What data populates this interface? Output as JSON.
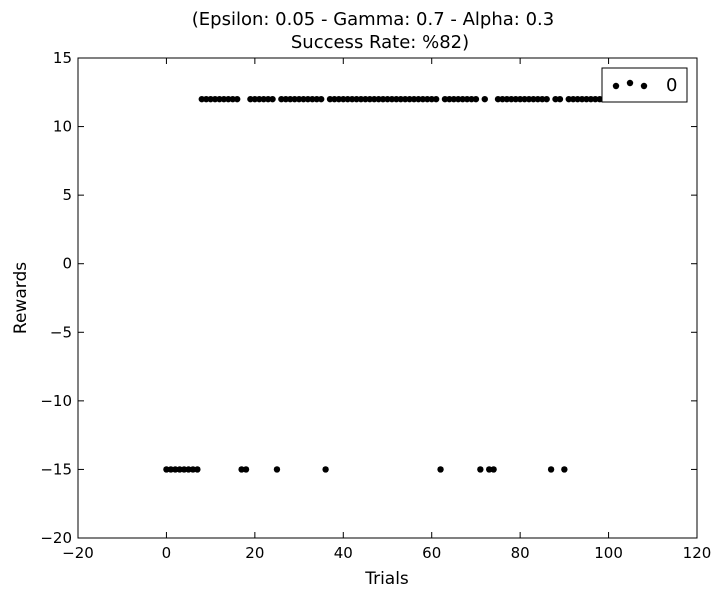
{
  "chart_data": {
    "type": "scatter",
    "title_line1": "(Epsilon: 0.05 - Gamma: 0.7 - Alpha: 0.3",
    "title_line2": "Success Rate: %82)",
    "xlabel": "Trials",
    "ylabel": "Rewards",
    "xlim": [
      -20,
      120
    ],
    "ylim": [
      -20,
      15
    ],
    "xticks": [
      -20,
      0,
      20,
      40,
      60,
      80,
      100,
      120
    ],
    "yticks": [
      -20,
      -15,
      -10,
      -5,
      0,
      5,
      10,
      15
    ],
    "xtick_labels": [
      "−20",
      "0",
      "20",
      "40",
      "60",
      "80",
      "100",
      "120"
    ],
    "ytick_labels": [
      "−20",
      "−15",
      "−10",
      "−5",
      "0",
      "5",
      "10",
      "15"
    ],
    "grid": false,
    "legend": {
      "position": "top-right",
      "entries": [
        "0"
      ]
    },
    "marker_color": "#000000",
    "series": [
      {
        "name": "0",
        "x": [
          0,
          1,
          2,
          3,
          4,
          5,
          6,
          7,
          8,
          9,
          10,
          11,
          12,
          13,
          14,
          15,
          16,
          17,
          18,
          19,
          20,
          21,
          22,
          23,
          24,
          25,
          26,
          27,
          28,
          29,
          30,
          31,
          32,
          33,
          34,
          35,
          36,
          37,
          38,
          39,
          40,
          41,
          42,
          43,
          44,
          45,
          46,
          47,
          48,
          49,
          50,
          51,
          52,
          53,
          54,
          55,
          56,
          57,
          58,
          59,
          60,
          61,
          62,
          63,
          64,
          65,
          66,
          67,
          68,
          69,
          70,
          71,
          72,
          73,
          74,
          75,
          76,
          77,
          78,
          79,
          80,
          81,
          82,
          83,
          84,
          85,
          86,
          87,
          88,
          89,
          90,
          91,
          92,
          93,
          94,
          95,
          96,
          97,
          98,
          99
        ],
        "y": [
          -15,
          -15,
          -15,
          -15,
          -15,
          -15,
          -15,
          -15,
          12,
          12,
          12,
          12,
          12,
          12,
          12,
          12,
          12,
          -15,
          -15,
          12,
          12,
          12,
          12,
          12,
          12,
          -15,
          12,
          12,
          12,
          12,
          12,
          12,
          12,
          12,
          12,
          12,
          -15,
          12,
          12,
          12,
          12,
          12,
          12,
          12,
          12,
          12,
          12,
          12,
          12,
          12,
          12,
          12,
          12,
          12,
          12,
          12,
          12,
          12,
          12,
          12,
          12,
          12,
          -15,
          12,
          12,
          12,
          12,
          12,
          12,
          12,
          12,
          -15,
          12,
          -15,
          -15,
          12,
          12,
          12,
          12,
          12,
          12,
          12,
          12,
          12,
          12,
          12,
          12,
          -15,
          12,
          12,
          -15,
          12,
          12,
          12,
          12,
          12,
          12,
          12,
          12,
          12
        ]
      }
    ]
  }
}
